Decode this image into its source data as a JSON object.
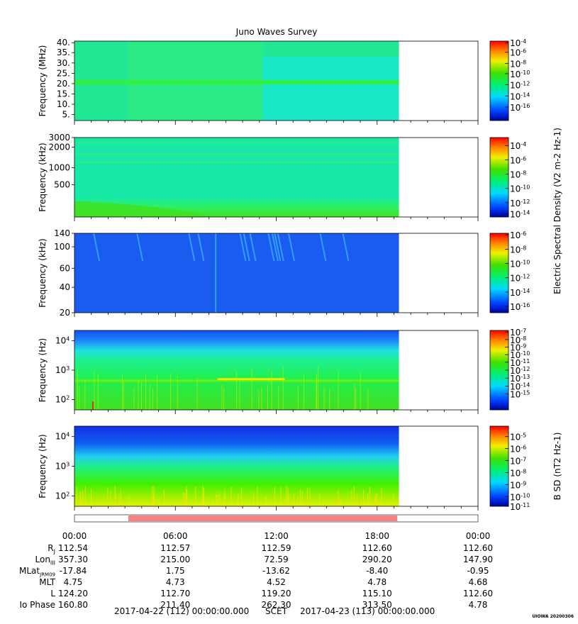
{
  "title": "Juno Waves Survey",
  "colors": {
    "background_blue": "#1560e8",
    "teal": "#10e0c8",
    "green": "#20e080",
    "bar_fill": "#f88080"
  },
  "chart_data": [
    {
      "type": "heatmap",
      "panel": "hfwbr-high",
      "ylabel": "Frequency (MHz)",
      "yticks": [
        "40.",
        "35.",
        "30.",
        "25.",
        "20.",
        "15.",
        "10.",
        "5."
      ],
      "ylim": [
        3.5,
        40
      ],
      "data_end_hour": 19.3,
      "colorbar_ticks": [
        "10-4",
        "10-6",
        "10-8",
        "10-10",
        "10-12",
        "10-14",
        "10-16"
      ],
      "colorbar_label": ""
    },
    {
      "type": "heatmap",
      "panel": "hfwbr-low",
      "ylabel": "Frequency (kHz)",
      "yticks": [
        "3000",
        "2000",
        "1000",
        "500"
      ],
      "ylim": [
        140,
        3000
      ],
      "data_end_hour": 19.3,
      "colorbar_ticks": [
        "10-4",
        "10-6",
        "10-8",
        "10-10",
        "10-12",
        "10-14"
      ],
      "colorbar_label": "Electric Spectral Density (V2 m-2 Hz-1)"
    },
    {
      "type": "heatmap",
      "panel": "lfr-high",
      "ylabel": "Frequency (kHz)",
      "yticks": [
        "140",
        "100",
        "60",
        "40",
        "20"
      ],
      "ylim": [
        20,
        140
      ],
      "data_end_hour": 19.3,
      "colorbar_ticks": [
        "10-6",
        "10-8",
        "10-10",
        "10-12",
        "10-14",
        "10-16"
      ],
      "colorbar_label": ""
    },
    {
      "type": "heatmap",
      "panel": "lfr-low-e",
      "ylabel": "Frequency (Hz)",
      "yticks": [
        "104",
        "103",
        "102"
      ],
      "ylim": [
        50,
        20000
      ],
      "data_end_hour": 19.3,
      "colorbar_ticks": [
        "10-7",
        "10-8",
        "10-9",
        "10-10",
        "10-11",
        "10-12",
        "10-13",
        "10-14",
        "10-15"
      ],
      "colorbar_label": ""
    },
    {
      "type": "heatmap",
      "panel": "lfr-low-b",
      "ylabel": "Frequency (Hz)",
      "yticks": [
        "104",
        "103",
        "102"
      ],
      "ylim": [
        50,
        20000
      ],
      "data_end_hour": 19.3,
      "colorbar_ticks": [
        "10-5",
        "10-6",
        "10-7",
        "10-8",
        "10-9",
        "10-10",
        "10-11"
      ],
      "colorbar_label": "B SD (nT2 Hz-1)"
    }
  ],
  "mode_bar": {
    "start_hour": 3.2,
    "end_hour": 19.2
  },
  "x_axis": {
    "tick_labels": [
      "00:00",
      "06:00",
      "12:00",
      "18:00",
      "00:00"
    ],
    "xlim_hours": [
      0,
      24
    ]
  },
  "ephemeris": {
    "rows": [
      {
        "label": "RJ",
        "values": [
          "112.54",
          "112.57",
          "112.59",
          "112.60",
          "112.60"
        ]
      },
      {
        "label": "LonIII",
        "values": [
          "357.30",
          "215.00",
          "72.59",
          "290.20",
          "147.90"
        ]
      },
      {
        "label": "MLatJRM09",
        "values": [
          "-17.84",
          "1.75",
          "-13.62",
          "-8.40",
          "-0.95"
        ]
      },
      {
        "label": "MLT",
        "values": [
          "4.75",
          "4.73",
          "4.52",
          "4.78",
          "4.68"
        ]
      },
      {
        "label": "L",
        "values": [
          "124.20",
          "112.70",
          "119.20",
          "115.10",
          "112.60"
        ]
      },
      {
        "label": "Io Phase",
        "values": [
          "160.80",
          "211.40",
          "262.30",
          "313.50",
          "4.78"
        ]
      }
    ]
  },
  "footer": {
    "start": "2017-04-22 (112) 00:00:00.000",
    "scet": "SCET",
    "end": "2017-04-23 (113) 00:00:00.000",
    "version": "UIOWA 20200306"
  }
}
